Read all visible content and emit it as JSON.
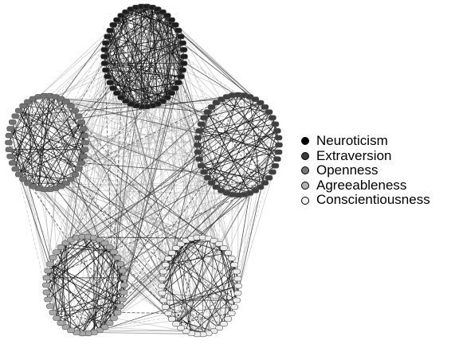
{
  "legend": {
    "items": [
      {
        "label": "Neuroticism",
        "color": "#000000",
        "node_color": "#1e1e1e"
      },
      {
        "label": "Extraversion",
        "color": "#3c3c3c",
        "node_color": "#3f3f3f"
      },
      {
        "label": "Openness",
        "color": "#777777",
        "node_color": "#727272"
      },
      {
        "label": "Agreeableness",
        "color": "#b4b4b4",
        "node_color": "#a8a8a8"
      },
      {
        "label": "Conscientiousness",
        "color": "#f0f0f0",
        "node_color": "#ececec"
      }
    ]
  }
}
